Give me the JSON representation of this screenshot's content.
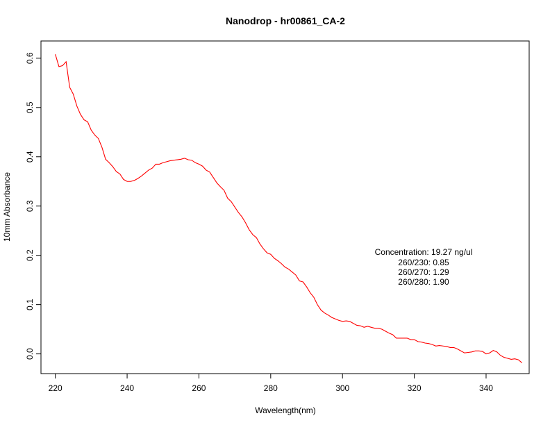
{
  "chart_data": {
    "type": "line",
    "title": "Nanodrop - hr00861_CA-2",
    "xlabel": "Wavelength(nm)",
    "ylabel": "10mm Absorbance",
    "xlim": [
      216,
      352
    ],
    "ylim": [
      -0.04,
      0.635
    ],
    "x_ticks": [
      220,
      240,
      260,
      280,
      300,
      320,
      340
    ],
    "y_ticks": [
      0.0,
      0.1,
      0.2,
      0.3,
      0.4,
      0.5,
      0.6
    ],
    "y_tick_labels": [
      "0.0",
      "0.1",
      "0.2",
      "0.3",
      "0.4",
      "0.5",
      "0.6"
    ],
    "grid": false,
    "legend": "none",
    "line_color": "#ff0000",
    "annotations": [
      "Concentration: 19.27 ng/ul",
      "260/230: 0.85",
      "260/270: 1.29",
      "260/280: 1.90"
    ],
    "series": [
      {
        "x": [
          220,
          221,
          222,
          223,
          224,
          225,
          226,
          227,
          228,
          229,
          230,
          231,
          232,
          233,
          234,
          235,
          236,
          237,
          238,
          239,
          240,
          241,
          242,
          243,
          244,
          245,
          246,
          247,
          248,
          249,
          250,
          251,
          252,
          253,
          254,
          255,
          256,
          257,
          258,
          259,
          260,
          261,
          262,
          263,
          264,
          265,
          266,
          267,
          268,
          269,
          270,
          271,
          272,
          273,
          274,
          275,
          276,
          277,
          278,
          279,
          280,
          281,
          282,
          283,
          284,
          285,
          286,
          287,
          288,
          289,
          290,
          291,
          292,
          293,
          294,
          295,
          296,
          297,
          298,
          299,
          300,
          301,
          302,
          303,
          304,
          305,
          306,
          307,
          308,
          309,
          310,
          311,
          312,
          313,
          314,
          315,
          316,
          317,
          318,
          319,
          320,
          321,
          322,
          323,
          324,
          325,
          326,
          327,
          328,
          329,
          330,
          331,
          332,
          333,
          334,
          335,
          336,
          337,
          338,
          339,
          340,
          341,
          342,
          343,
          344,
          345,
          346,
          347,
          348,
          349,
          350
        ],
        "values": [
          0.608,
          0.583,
          0.585,
          0.593,
          0.541,
          0.527,
          0.503,
          0.486,
          0.475,
          0.471,
          0.454,
          0.444,
          0.437,
          0.419,
          0.395,
          0.388,
          0.38,
          0.37,
          0.365,
          0.354,
          0.35,
          0.35,
          0.352,
          0.356,
          0.361,
          0.367,
          0.373,
          0.377,
          0.385,
          0.385,
          0.388,
          0.39,
          0.392,
          0.393,
          0.394,
          0.395,
          0.397,
          0.394,
          0.393,
          0.388,
          0.385,
          0.381,
          0.373,
          0.369,
          0.358,
          0.347,
          0.339,
          0.332,
          0.316,
          0.309,
          0.298,
          0.287,
          0.278,
          0.266,
          0.252,
          0.242,
          0.236,
          0.223,
          0.213,
          0.205,
          0.202,
          0.194,
          0.189,
          0.183,
          0.176,
          0.172,
          0.166,
          0.16,
          0.148,
          0.146,
          0.136,
          0.124,
          0.115,
          0.1,
          0.089,
          0.083,
          0.079,
          0.074,
          0.071,
          0.068,
          0.066,
          0.067,
          0.066,
          0.062,
          0.058,
          0.057,
          0.054,
          0.056,
          0.054,
          0.052,
          0.052,
          0.05,
          0.046,
          0.042,
          0.039,
          0.032,
          0.032,
          0.032,
          0.032,
          0.029,
          0.029,
          0.025,
          0.024,
          0.022,
          0.021,
          0.019,
          0.016,
          0.017,
          0.016,
          0.015,
          0.013,
          0.013,
          0.01,
          0.006,
          0.002,
          0.003,
          0.004,
          0.006,
          0.006,
          0.005,
          0.0,
          0.002,
          0.007,
          0.004,
          -0.003,
          -0.007,
          -0.009,
          -0.011,
          -0.01,
          -0.012,
          -0.018
        ]
      }
    ]
  }
}
